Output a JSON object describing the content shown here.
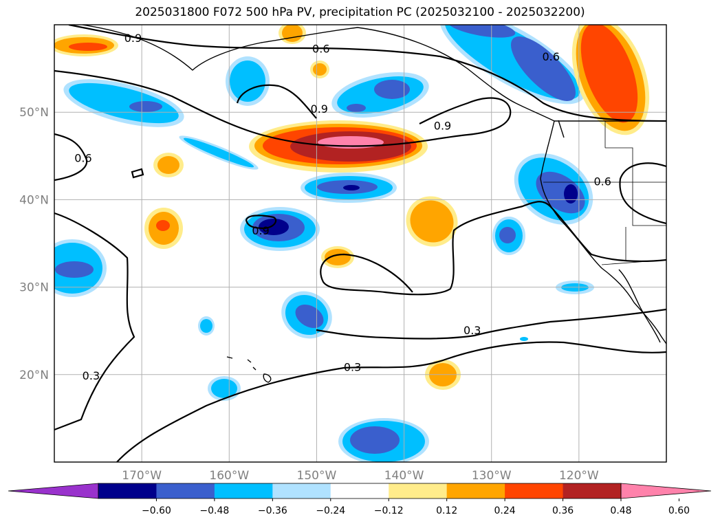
{
  "title": "2025031800 F072 500 hPa PV, precipitation PC (2025032100 - 2025032200)",
  "map": {
    "lon_range": [
      -180,
      -110
    ],
    "lat_range": [
      10,
      60
    ],
    "lon_ticks": [
      {
        "lon": -170,
        "label": "170°W"
      },
      {
        "lon": -160,
        "label": "160°W"
      },
      {
        "lon": -150,
        "label": "150°W"
      },
      {
        "lon": -140,
        "label": "140°W"
      },
      {
        "lon": -130,
        "label": "130°W"
      },
      {
        "lon": -120,
        "label": "120°W"
      }
    ],
    "lat_ticks": [
      {
        "lat": 20,
        "label": "20°N"
      },
      {
        "lat": 30,
        "label": "30°N"
      },
      {
        "lat": 40,
        "label": "40°N"
      },
      {
        "lat": 50,
        "label": "50°N"
      }
    ],
    "grid": true,
    "contour_labels": [
      {
        "text": "0.9",
        "lon": -171.0,
        "lat": 58.5
      },
      {
        "text": "0.6",
        "lon": -149.5,
        "lat": 57.3
      },
      {
        "text": "0.6",
        "lon": -123.2,
        "lat": 56.4
      },
      {
        "text": "0.9",
        "lon": -149.7,
        "lat": 50.4
      },
      {
        "text": "0.9",
        "lon": -135.6,
        "lat": 48.5
      },
      {
        "text": "0.6",
        "lon": -176.7,
        "lat": 44.8
      },
      {
        "text": "0.6",
        "lon": -117.3,
        "lat": 42.1
      },
      {
        "text": "0.9",
        "lon": -156.4,
        "lat": 36.5
      },
      {
        "text": "0.3",
        "lon": -132.2,
        "lat": 25.1
      },
      {
        "text": "0.3",
        "lon": -145.9,
        "lat": 20.9
      },
      {
        "text": "0.3",
        "lon": -175.8,
        "lat": 19.9
      }
    ]
  },
  "colorbar": {
    "colors": [
      "#9932cc",
      "#00008b",
      "#3a5fcd",
      "#00bfff",
      "#b0e2ff",
      "#ffffff",
      "#ffec8b",
      "#ffa500",
      "#ff4500",
      "#b22222",
      "#ff82ab"
    ],
    "tick_labels": [
      "−0.60",
      "−0.48",
      "−0.36",
      "−0.24",
      "−0.12",
      "0.12",
      "0.24",
      "0.36",
      "0.48",
      "0.60"
    ]
  }
}
